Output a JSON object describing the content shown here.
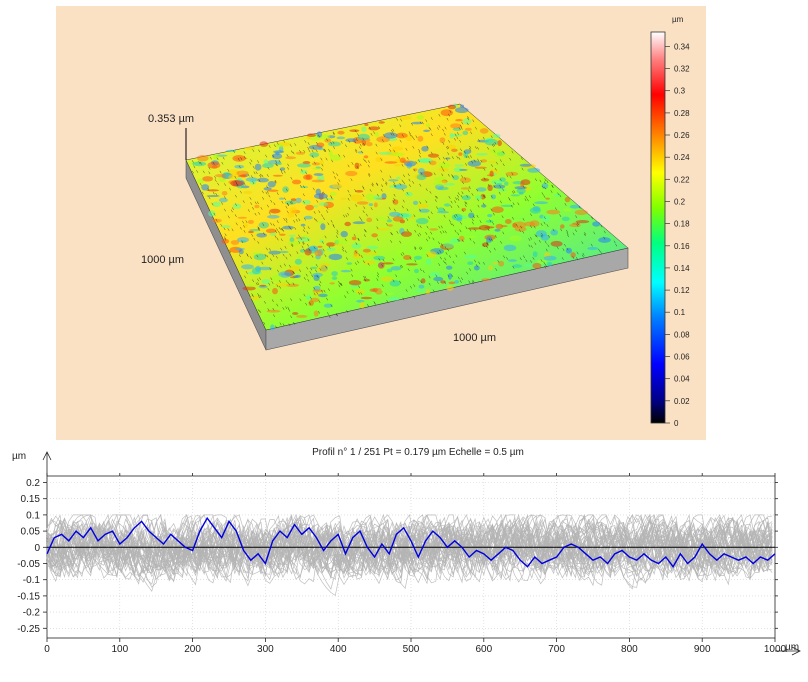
{
  "chart_data": [
    {
      "type": "surface3d",
      "height_label": "0.353 µm",
      "x_extent_label": "1000 µm",
      "y_extent_label": "1000 µm",
      "colorbar": {
        "unit": "µm",
        "ticks": [
          0,
          0.02,
          0.04,
          0.06,
          0.08,
          0.1,
          0.12,
          0.14,
          0.16,
          0.18,
          0.2,
          0.22,
          0.24,
          0.26,
          0.28,
          0.3,
          0.32,
          0.34
        ],
        "tick_labels": [
          "0",
          "0.02",
          "0.04",
          "0.06",
          "0.08",
          "0.1",
          "0.12",
          "0.14",
          "0.16",
          "0.18",
          "0.2",
          "0.22",
          "0.24",
          "0.26",
          "0.28",
          "0.3",
          "0.32",
          "0.34"
        ],
        "range": [
          0,
          0.353
        ],
        "colors": [
          "#000000",
          "#00008b",
          "#0000ff",
          "#0080ff",
          "#00ffff",
          "#00ff80",
          "#80ff00",
          "#ffff00",
          "#ff8000",
          "#ff0000",
          "#ff8080",
          "#ffffff"
        ]
      }
    },
    {
      "type": "line",
      "title": "Profil n° 1 / 251 Pt = 0.179 µm  Echelle = 0.5 µm",
      "ylabel": "µm",
      "xlabel": "µm",
      "xlim": [
        0,
        1000
      ],
      "ylim": [
        -0.28,
        0.22
      ],
      "x_ticks": [
        0,
        100,
        200,
        300,
        400,
        500,
        600,
        700,
        800,
        900,
        1000
      ],
      "x_tick_labels": [
        "0",
        "100",
        "200",
        "300",
        "400",
        "500",
        "600",
        "700",
        "800",
        "900",
        "1000"
      ],
      "y_ticks": [
        0.2,
        0.15,
        0.1,
        0.05,
        0,
        -0.05,
        -0.1,
        -0.15,
        -0.2,
        -0.25
      ],
      "y_tick_labels": [
        "0.2",
        "0.15",
        "0.1",
        "0.05",
        "0",
        "-0.05",
        "-0.1",
        "-0.15",
        "-0.2",
        "-0.25"
      ],
      "grid": true,
      "series": [
        {
          "color": "#0000e0",
          "x": [
            0,
            10,
            20,
            30,
            40,
            50,
            60,
            70,
            80,
            90,
            100,
            110,
            120,
            130,
            140,
            150,
            160,
            170,
            180,
            190,
            200,
            210,
            220,
            230,
            240,
            250,
            260,
            270,
            280,
            290,
            300,
            310,
            320,
            330,
            340,
            350,
            360,
            370,
            380,
            390,
            400,
            410,
            420,
            430,
            440,
            450,
            460,
            470,
            480,
            490,
            500,
            510,
            520,
            530,
            540,
            550,
            560,
            570,
            580,
            590,
            600,
            610,
            620,
            630,
            640,
            650,
            660,
            670,
            680,
            690,
            700,
            710,
            720,
            730,
            740,
            750,
            760,
            770,
            780,
            790,
            800,
            810,
            820,
            830,
            840,
            850,
            860,
            870,
            880,
            890,
            900,
            910,
            920,
            930,
            940,
            950,
            960,
            970,
            980,
            990,
            1000
          ],
          "y": [
            -0.02,
            0.03,
            0.04,
            0.02,
            0.05,
            0.03,
            0.06,
            0.02,
            0.04,
            0.05,
            0.01,
            0.03,
            0.06,
            0.08,
            0.05,
            0.03,
            0.01,
            0.04,
            0.02,
            0.0,
            -0.01,
            0.05,
            0.09,
            0.06,
            0.03,
            0.08,
            0.05,
            -0.01,
            -0.04,
            -0.02,
            -0.05,
            0.02,
            0.05,
            0.03,
            0.07,
            0.04,
            0.06,
            0.03,
            -0.01,
            0.02,
            0.04,
            -0.02,
            0.03,
            0.05,
            0.0,
            -0.03,
            0.01,
            -0.02,
            0.04,
            0.06,
            0.02,
            -0.03,
            0.02,
            0.05,
            0.03,
            0.0,
            0.02,
            0.0,
            -0.03,
            -0.01,
            -0.02,
            -0.04,
            -0.02,
            0.0,
            -0.01,
            -0.04,
            -0.06,
            -0.03,
            -0.05,
            -0.04,
            -0.03,
            0.0,
            0.01,
            0.0,
            -0.02,
            -0.04,
            -0.03,
            -0.05,
            -0.02,
            -0.01,
            -0.03,
            -0.04,
            -0.02,
            -0.04,
            -0.05,
            -0.03,
            -0.06,
            -0.02,
            -0.05,
            -0.03,
            0.01,
            -0.02,
            -0.04,
            -0.02,
            -0.03,
            -0.04,
            -0.03,
            -0.05,
            -0.03,
            -0.04,
            -0.02
          ]
        }
      ],
      "background_profiles": {
        "color": "#b4b4b4",
        "count": 251
      }
    }
  ]
}
